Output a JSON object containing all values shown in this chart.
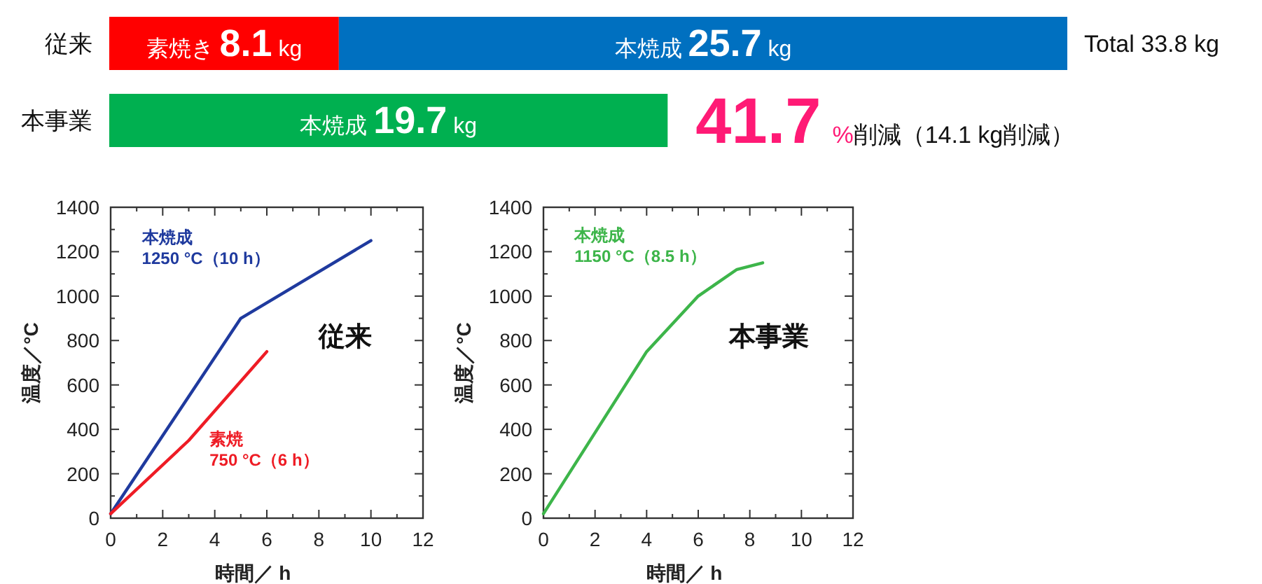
{
  "chart_data": [
    {
      "type": "bar",
      "orientation": "horizontal",
      "stacked": true,
      "categories": [
        "従来",
        "本事業"
      ],
      "series": [
        {
          "name": "素焼き",
          "color": "#ff0000",
          "values": [
            8.1,
            null
          ],
          "value_labels": [
            "8.1 kg",
            null
          ]
        },
        {
          "name": "本焼成",
          "colors": [
            "#0070c0",
            "#00b050"
          ],
          "values": [
            25.7,
            19.7
          ],
          "value_labels": [
            "25.7 kg",
            "19.7 kg"
          ]
        }
      ],
      "annotations": [
        "Total 33.8 kg",
        "41.7 %削減（14.1 kg削減）"
      ]
    },
    {
      "type": "line",
      "xlabel": "時間／ h",
      "ylabel": "温度／°C",
      "xlim": [
        0,
        12
      ],
      "ylim": [
        0,
        1400
      ],
      "xticks": [
        0,
        {
          "value": 1,
          "label": null
        },
        2,
        {
          "value": 3,
          "label": null
        },
        4,
        {
          "value": 5,
          "label": null
        },
        6,
        {
          "value": 7,
          "label": null
        },
        8,
        {
          "value": 9,
          "label": null
        },
        10,
        {
          "value": 11,
          "label": null
        },
        12
      ],
      "yticks": [
        0,
        {
          "value": 100,
          "label": null
        },
        200,
        {
          "value": 300,
          "label": null
        },
        400,
        {
          "value": 500,
          "label": null
        },
        600,
        {
          "value": 700,
          "label": null
        },
        800,
        {
          "value": 900,
          "label": null
        },
        1000,
        {
          "value": 1100,
          "label": null
        },
        1200,
        {
          "value": 1300,
          "label": null
        },
        1400
      ],
      "series": [
        {
          "name": "本焼成",
          "color": "#1f3a9e",
          "x": [
            0,
            5,
            10
          ],
          "values": [
            20,
            900,
            1250
          ]
        },
        {
          "name": "素焼",
          "color": "#ee1c25",
          "x": [
            0,
            3,
            6
          ],
          "values": [
            20,
            350,
            750
          ]
        }
      ],
      "annotations": [
        "1250 °C（10 h）",
        "750 °C（6 h）",
        "従来"
      ]
    },
    {
      "type": "line",
      "xlabel": "時間／ h",
      "ylabel": "温度／°C",
      "xlim": [
        0,
        12
      ],
      "ylim": [
        0,
        1400
      ],
      "xticks": [
        0,
        {
          "value": 1,
          "label": null
        },
        2,
        {
          "value": 3,
          "label": null
        },
        4,
        {
          "value": 5,
          "label": null
        },
        6,
        {
          "value": 7,
          "label": null
        },
        8,
        {
          "value": 9,
          "label": null
        },
        10,
        {
          "value": 11,
          "label": null
        },
        12
      ],
      "yticks": [
        0,
        {
          "value": 100,
          "label": null
        },
        200,
        {
          "value": 300,
          "label": null
        },
        400,
        {
          "value": 500,
          "label": null
        },
        600,
        {
          "value": 700,
          "label": null
        },
        800,
        {
          "value": 900,
          "label": null
        },
        1000,
        {
          "value": 1100,
          "label": null
        },
        1200,
        {
          "value": 1300,
          "label": null
        },
        1400
      ],
      "series": [
        {
          "name": "本焼成",
          "color": "#3db54a",
          "x": [
            0,
            4,
            6,
            7.5,
            8.5
          ],
          "values": [
            20,
            750,
            1000,
            1120,
            1150
          ]
        }
      ],
      "annotations": [
        "1150 °C（8.5 h）",
        "本事業"
      ]
    }
  ]
}
